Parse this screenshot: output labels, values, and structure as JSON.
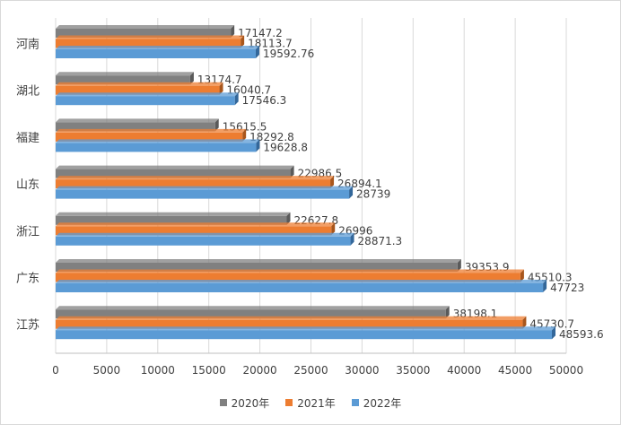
{
  "chart_data": {
    "type": "bar",
    "orientation": "horizontal",
    "title": "",
    "xlabel": "",
    "ylabel": "",
    "categories": [
      "河南",
      "湖北",
      "福建",
      "山东",
      "浙江",
      "广东",
      "江苏"
    ],
    "series": [
      {
        "name": "2020年",
        "color": "#808080",
        "values": [
          17147.2,
          13174.7,
          15615.5,
          22986.5,
          22627.8,
          39353.9,
          38198.1
        ],
        "labels": [
          "17147.2",
          "13174.7",
          "15615.5",
          "22986.5",
          "22627.8",
          "39353.9",
          "38198.1"
        ]
      },
      {
        "name": "2021年",
        "color": "#ED7D31",
        "values": [
          18113.7,
          16040.7,
          18292.8,
          26894.1,
          26996,
          45510.3,
          45730.7
        ],
        "labels": [
          "18113.7",
          "16040.7",
          "18292.8",
          "26894.1",
          "26996",
          "45510.3",
          "45730.7"
        ]
      },
      {
        "name": "2022年",
        "color": "#5B9BD5",
        "values": [
          19592.76,
          17546.3,
          19628.8,
          28739,
          28871.3,
          47723,
          48593.6
        ],
        "labels": [
          "19592.76",
          "17546.3",
          "19628.8",
          "28739",
          "28871.3",
          "47723",
          "48593.6"
        ]
      }
    ],
    "xlim": [
      0,
      50000
    ],
    "xticks": [
      0,
      5000,
      10000,
      15000,
      20000,
      25000,
      30000,
      35000,
      40000,
      45000,
      50000
    ],
    "xtick_labels": [
      "0",
      "5000",
      "10000",
      "15000",
      "20000",
      "25000",
      "30000",
      "35000",
      "40000",
      "45000",
      "50000"
    ],
    "grid": true,
    "legend_position": "bottom"
  }
}
